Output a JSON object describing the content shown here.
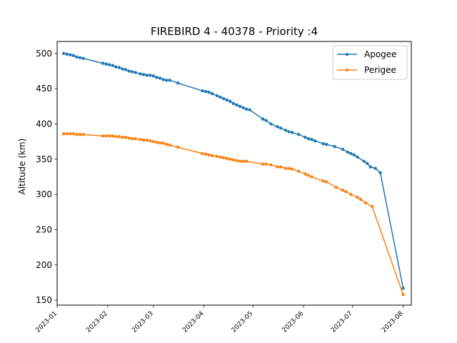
{
  "chart_data": {
    "type": "line",
    "title": "FIREBIRD 4 - 40378 - Priority :4",
    "xlabel": "",
    "ylabel": "Altitude (km)",
    "xlim": [
      "2023-01-01",
      "2023-08-06"
    ],
    "ylim": [
      143,
      517
    ],
    "x_ticks": [
      "2023-01",
      "2023-02",
      "2023-03",
      "2023-04",
      "2023-05",
      "2023-06",
      "2023-07",
      "2023-08"
    ],
    "y_ticks": [
      150,
      200,
      250,
      300,
      350,
      400,
      450,
      500
    ],
    "grid": false,
    "legend": "top-right",
    "colors": {
      "Apogee": "#1f77b4",
      "Perigee": "#ff7f0e"
    },
    "series": [
      {
        "name": "Apogee",
        "points": [
          [
            "2023-01-05",
            500
          ],
          [
            "2023-01-07",
            499
          ],
          [
            "2023-01-09",
            498
          ],
          [
            "2023-01-11",
            497
          ],
          [
            "2023-01-13",
            495
          ],
          [
            "2023-01-15",
            494
          ],
          [
            "2023-01-17",
            493
          ],
          [
            "2023-01-29",
            486
          ],
          [
            "2023-01-31",
            485
          ],
          [
            "2023-02-02",
            484
          ],
          [
            "2023-02-04",
            483
          ],
          [
            "2023-02-06",
            481
          ],
          [
            "2023-02-08",
            480
          ],
          [
            "2023-02-10",
            478
          ],
          [
            "2023-02-12",
            477
          ],
          [
            "2023-02-14",
            475
          ],
          [
            "2023-02-16",
            474
          ],
          [
            "2023-02-18",
            473
          ],
          [
            "2023-02-21",
            471
          ],
          [
            "2023-02-23",
            470
          ],
          [
            "2023-02-25",
            469
          ],
          [
            "2023-02-27",
            469
          ],
          [
            "2023-03-01",
            468
          ],
          [
            "2023-03-03",
            466
          ],
          [
            "2023-03-05",
            465
          ],
          [
            "2023-03-07",
            463
          ],
          [
            "2023-03-09",
            462
          ],
          [
            "2023-03-11",
            462
          ],
          [
            "2023-03-16",
            458
          ],
          [
            "2023-03-31",
            447
          ],
          [
            "2023-04-02",
            446
          ],
          [
            "2023-04-04",
            445
          ],
          [
            "2023-04-06",
            443
          ],
          [
            "2023-04-09",
            440
          ],
          [
            "2023-04-11",
            438
          ],
          [
            "2023-04-13",
            436
          ],
          [
            "2023-04-15",
            434
          ],
          [
            "2023-04-17",
            432
          ],
          [
            "2023-04-19",
            429
          ],
          [
            "2023-04-21",
            427
          ],
          [
            "2023-04-23",
            425
          ],
          [
            "2023-04-25",
            423
          ],
          [
            "2023-04-27",
            421
          ],
          [
            "2023-04-29",
            420
          ],
          [
            "2023-05-07",
            407
          ],
          [
            "2023-05-09",
            405
          ],
          [
            "2023-05-12",
            400
          ],
          [
            "2023-05-16",
            396
          ],
          [
            "2023-05-18",
            394
          ],
          [
            "2023-05-21",
            391
          ],
          [
            "2023-05-23",
            389
          ],
          [
            "2023-05-25",
            388
          ],
          [
            "2023-05-29",
            385
          ],
          [
            "2023-06-02",
            381
          ],
          [
            "2023-06-04",
            379
          ],
          [
            "2023-06-06",
            378
          ],
          [
            "2023-06-08",
            376
          ],
          [
            "2023-06-13",
            372
          ],
          [
            "2023-06-15",
            371
          ],
          [
            "2023-06-20",
            368
          ],
          [
            "2023-06-25",
            364
          ],
          [
            "2023-06-28",
            360
          ],
          [
            "2023-06-30",
            358
          ],
          [
            "2023-07-02",
            356
          ],
          [
            "2023-07-04",
            353
          ],
          [
            "2023-07-08",
            347
          ],
          [
            "2023-07-10",
            344
          ],
          [
            "2023-07-12",
            339
          ],
          [
            "2023-07-15",
            337
          ],
          [
            "2023-07-18",
            331
          ],
          [
            "2023-08-01",
            167
          ]
        ]
      },
      {
        "name": "Perigee",
        "points": [
          [
            "2023-01-05",
            386
          ],
          [
            "2023-01-07",
            386
          ],
          [
            "2023-01-09",
            386
          ],
          [
            "2023-01-11",
            386
          ],
          [
            "2023-01-13",
            385
          ],
          [
            "2023-01-15",
            385
          ],
          [
            "2023-01-17",
            385
          ],
          [
            "2023-01-29",
            383
          ],
          [
            "2023-01-31",
            383
          ],
          [
            "2023-02-02",
            383
          ],
          [
            "2023-02-04",
            383
          ],
          [
            "2023-02-06",
            382
          ],
          [
            "2023-02-08",
            382
          ],
          [
            "2023-02-10",
            381
          ],
          [
            "2023-02-12",
            381
          ],
          [
            "2023-02-14",
            380
          ],
          [
            "2023-02-16",
            379
          ],
          [
            "2023-02-18",
            379
          ],
          [
            "2023-02-21",
            378
          ],
          [
            "2023-02-23",
            377
          ],
          [
            "2023-02-25",
            377
          ],
          [
            "2023-02-27",
            376
          ],
          [
            "2023-03-01",
            375
          ],
          [
            "2023-03-03",
            374
          ],
          [
            "2023-03-05",
            373
          ],
          [
            "2023-03-07",
            373
          ],
          [
            "2023-03-09",
            371
          ],
          [
            "2023-03-11",
            370
          ],
          [
            "2023-03-16",
            367
          ],
          [
            "2023-03-31",
            358
          ],
          [
            "2023-04-02",
            357
          ],
          [
            "2023-04-04",
            356
          ],
          [
            "2023-04-06",
            355
          ],
          [
            "2023-04-09",
            354
          ],
          [
            "2023-04-11",
            353
          ],
          [
            "2023-04-13",
            352
          ],
          [
            "2023-04-15",
            351
          ],
          [
            "2023-04-17",
            350
          ],
          [
            "2023-04-19",
            349
          ],
          [
            "2023-04-21",
            348
          ],
          [
            "2023-04-23",
            347
          ],
          [
            "2023-04-25",
            347
          ],
          [
            "2023-04-27",
            347
          ],
          [
            "2023-05-07",
            343
          ],
          [
            "2023-05-09",
            343
          ],
          [
            "2023-05-12",
            342
          ],
          [
            "2023-05-16",
            339
          ],
          [
            "2023-05-18",
            339
          ],
          [
            "2023-05-21",
            337
          ],
          [
            "2023-05-23",
            337
          ],
          [
            "2023-05-25",
            336
          ],
          [
            "2023-05-29",
            333
          ],
          [
            "2023-06-02",
            329
          ],
          [
            "2023-06-04",
            327
          ],
          [
            "2023-06-06",
            325
          ],
          [
            "2023-06-13",
            319
          ],
          [
            "2023-06-15",
            318
          ],
          [
            "2023-06-21",
            310
          ],
          [
            "2023-06-25",
            306
          ],
          [
            "2023-06-27",
            304
          ],
          [
            "2023-06-30",
            300
          ],
          [
            "2023-07-04",
            296
          ],
          [
            "2023-07-06",
            293
          ],
          [
            "2023-07-09",
            288
          ],
          [
            "2023-07-13",
            283
          ],
          [
            "2023-08-01",
            158
          ]
        ]
      }
    ]
  }
}
